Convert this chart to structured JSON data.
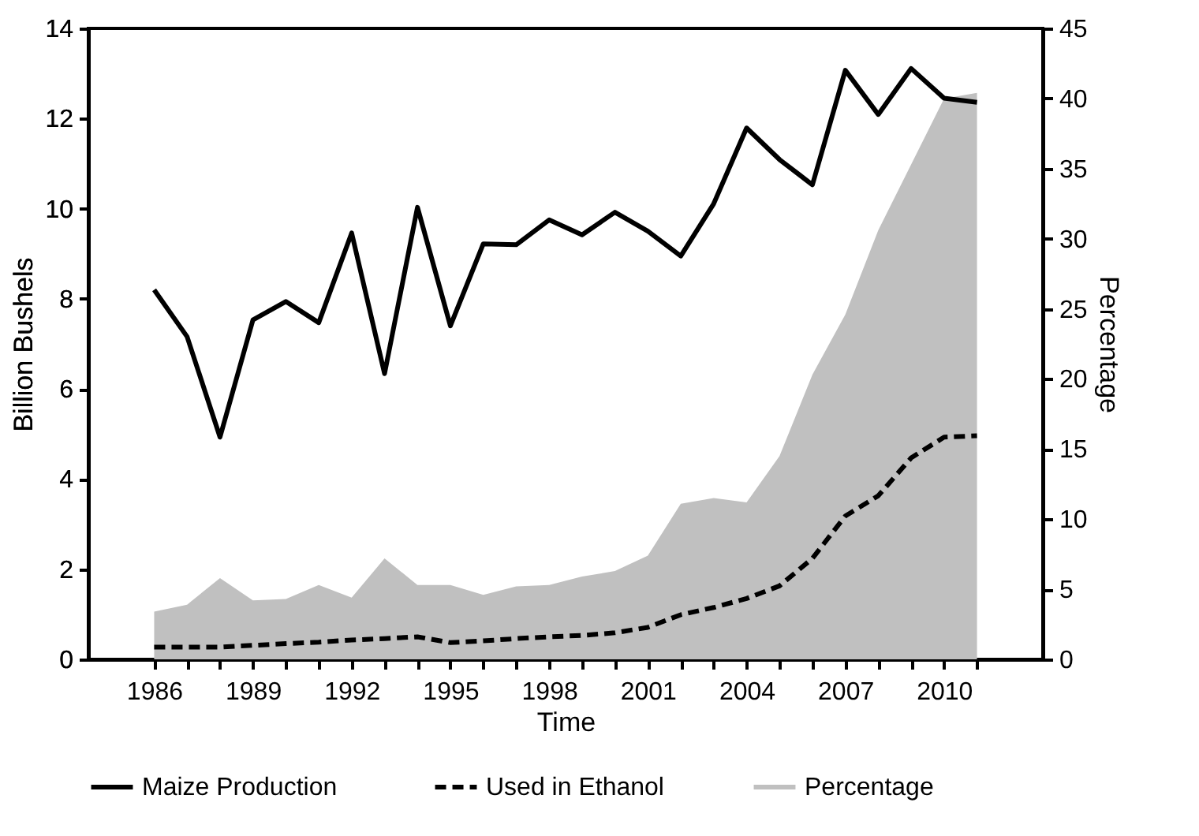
{
  "chart_data": {
    "type": "line",
    "xlabel": "Time",
    "ylabel": "Billion Bushels",
    "y2label": "Percentage",
    "x": [
      1986,
      1987,
      1988,
      1989,
      1990,
      1991,
      1992,
      1993,
      1994,
      1995,
      1996,
      1997,
      1998,
      1999,
      2000,
      2001,
      2002,
      2003,
      2004,
      2005,
      2006,
      2007,
      2008,
      2009,
      2010,
      2011
    ],
    "series": [
      {
        "name": "Maize  Production",
        "line_style": "solid",
        "color": "#000000",
        "values": [
          8.2,
          7.16,
          4.93,
          7.53,
          7.94,
          7.47,
          9.46,
          6.34,
          10.03,
          7.4,
          9.22,
          9.2,
          9.75,
          9.42,
          9.92,
          9.5,
          8.95,
          10.11,
          11.79,
          11.09,
          10.53,
          13.07,
          12.09,
          13.11,
          12.45,
          12.36
        ]
      },
      {
        "name": "Used in Ethanol",
        "line_style": "dashed",
        "color": "#000000",
        "values": [
          0.27,
          0.27,
          0.27,
          0.31,
          0.35,
          0.38,
          0.43,
          0.46,
          0.5,
          0.37,
          0.41,
          0.46,
          0.5,
          0.53,
          0.59,
          0.71,
          0.99,
          1.15,
          1.35,
          1.63,
          2.24,
          3.18,
          3.63,
          4.47,
          4.93,
          4.96
        ]
      },
      {
        "name": "Percentage",
        "type": "area",
        "axis": "y2",
        "color": "#c0c0c0",
        "values": [
          3.4,
          3.9,
          5.8,
          4.2,
          4.3,
          5.3,
          4.4,
          7.2,
          5.3,
          5.3,
          4.6,
          5.2,
          5.3,
          5.9,
          6.3,
          7.4,
          11.1,
          11.5,
          11.2,
          14.5,
          20.3,
          24.6,
          30.6,
          35.3,
          40.0,
          40.4
        ]
      }
    ],
    "xlim": [
      1984,
      2013
    ],
    "xticks": [
      1986,
      {
        "value": 1987,
        "label": null
      },
      {
        "value": 1988,
        "label": null
      },
      1989,
      {
        "value": 1990,
        "label": null
      },
      {
        "value": 1991,
        "label": null
      },
      1992,
      {
        "value": 1993,
        "label": null
      },
      {
        "value": 1994,
        "label": null
      },
      1995,
      {
        "value": 1996,
        "label": null
      },
      {
        "value": 1997,
        "label": null
      },
      1998,
      {
        "value": 1999,
        "label": null
      },
      {
        "value": 2000,
        "label": null
      },
      2001,
      {
        "value": 2002,
        "label": null
      },
      {
        "value": 2003,
        "label": null
      },
      2004,
      {
        "value": 2005,
        "label": null
      },
      {
        "value": 2006,
        "label": null
      },
      2007,
      {
        "value": 2008,
        "label": null
      },
      {
        "value": 2009,
        "label": null
      },
      2010,
      {
        "value": 2011,
        "label": null
      }
    ],
    "ylim": [
      0,
      14
    ],
    "yticks": [
      0,
      2,
      4,
      6,
      8,
      10,
      12,
      14
    ],
    "y2lim": [
      0,
      45
    ],
    "y2ticks": [
      0,
      5,
      10,
      15,
      20,
      25,
      30,
      35,
      40,
      45
    ],
    "legend": "bottom",
    "grid": false,
    "marker": "none"
  }
}
